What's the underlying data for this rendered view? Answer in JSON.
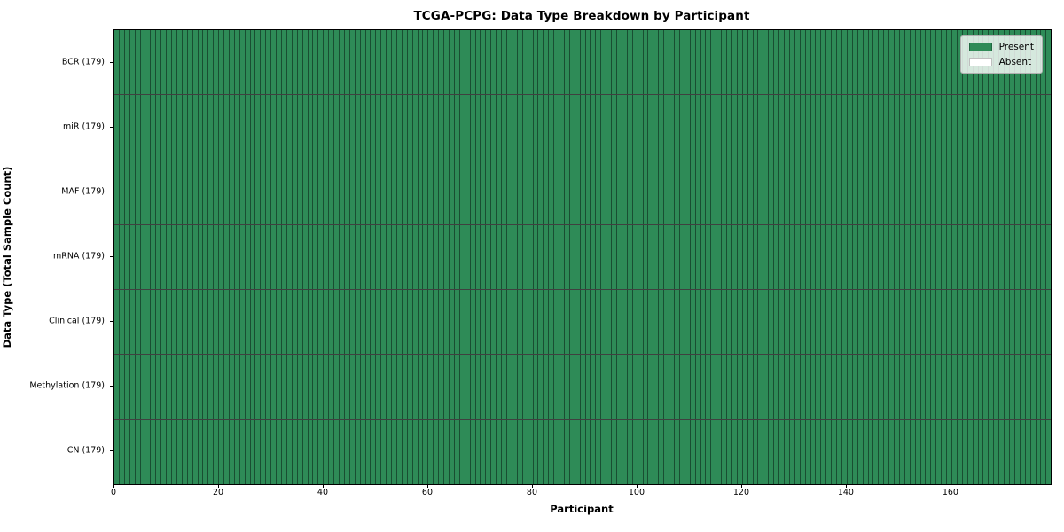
{
  "figure": {
    "background": "#ffffff"
  },
  "chart_data": {
    "type": "heatmap",
    "title": "TCGA-PCPG: Data Type Breakdown by Participant",
    "xlabel": "Participant",
    "ylabel": "Data Type (Total Sample Count)",
    "xlim": [
      0,
      179
    ],
    "x_ticks": [
      0,
      20,
      40,
      60,
      80,
      100,
      120,
      140,
      160
    ],
    "n_participants": 179,
    "grid": "per-cell vertical dividers and per-row horizontal dividers",
    "rows": [
      {
        "label": "BCR (179)",
        "data_type": "BCR",
        "total_samples": 179,
        "present_count": 179,
        "absent_count": 0
      },
      {
        "label": "miR (179)",
        "data_type": "miR",
        "total_samples": 179,
        "present_count": 179,
        "absent_count": 0
      },
      {
        "label": "MAF (179)",
        "data_type": "MAF",
        "total_samples": 179,
        "present_count": 179,
        "absent_count": 0
      },
      {
        "label": "mRNA (179)",
        "data_type": "mRNA",
        "total_samples": 179,
        "present_count": 179,
        "absent_count": 0
      },
      {
        "label": "Clinical (179)",
        "data_type": "Clinical",
        "total_samples": 179,
        "present_count": 179,
        "absent_count": 0
      },
      {
        "label": "Methylation (179)",
        "data_type": "Methylation",
        "total_samples": 179,
        "present_count": 179,
        "absent_count": 0
      },
      {
        "label": "CN (179)",
        "data_type": "CN",
        "total_samples": 179,
        "present_count": 179,
        "absent_count": 0
      }
    ],
    "legend": {
      "position": "upper right",
      "entries": [
        {
          "label": "Present",
          "color": "#2e8b57"
        },
        {
          "label": "Absent",
          "color": "#ffffff"
        }
      ]
    },
    "colors": {
      "present": "#2e8b57",
      "absent": "#ffffff",
      "cell_edge": "rgba(10,30,20,0.55)",
      "row_divider": "rgba(0,0,0,0.75)",
      "spine": "#000000"
    }
  }
}
